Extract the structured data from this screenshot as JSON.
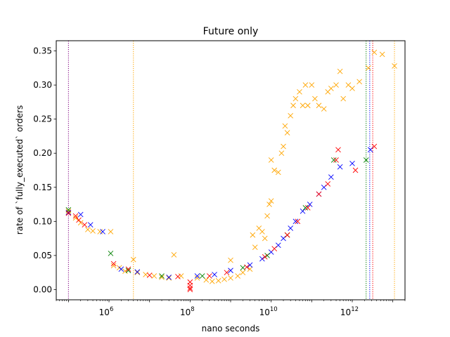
{
  "chart_data": {
    "type": "scatter",
    "title": "Future only",
    "xlabel": "nano seconds",
    "ylabel": "rate of `fully_executed` orders",
    "x_scale": "log",
    "xlim": [
      50000,
      20000000000000
    ],
    "ylim": [
      -0.015,
      0.365
    ],
    "xticks": [
      {
        "value": 1000000,
        "base": "10",
        "exp": "6"
      },
      {
        "value": 100000000,
        "base": "10",
        "exp": "8"
      },
      {
        "value": 10000000000,
        "base": "10",
        "exp": "10"
      },
      {
        "value": 1000000000000,
        "base": "10",
        "exp": "12"
      }
    ],
    "yticks": [
      {
        "value": 0.0,
        "label": "0.00"
      },
      {
        "value": 0.05,
        "label": "0.05"
      },
      {
        "value": 0.1,
        "label": "0.10"
      },
      {
        "value": 0.15,
        "label": "0.15"
      },
      {
        "value": 0.2,
        "label": "0.20"
      },
      {
        "value": 0.25,
        "label": "0.25"
      },
      {
        "value": 0.3,
        "label": "0.30"
      },
      {
        "value": 0.35,
        "label": "0.35"
      }
    ],
    "grid": false,
    "marker": "x",
    "series": [
      {
        "color": "#ffa500",
        "points": [
          [
            100000,
            0.115
          ],
          [
            150000,
            0.105
          ],
          [
            200000,
            0.098
          ],
          [
            300000,
            0.088
          ],
          [
            400000,
            0.086
          ],
          [
            600000,
            0.085
          ],
          [
            1100000,
            0.085
          ],
          [
            1300000,
            0.035
          ],
          [
            1800000,
            0.032
          ],
          [
            2500000,
            0.027
          ],
          [
            4000000,
            0.044
          ],
          [
            5000000,
            0.025
          ],
          [
            8000000,
            0.022
          ],
          [
            13000000,
            0.02
          ],
          [
            20000000,
            0.018
          ],
          [
            30000000,
            0.017
          ],
          [
            40000000,
            0.051
          ],
          [
            60000000,
            0.02
          ],
          [
            1000000000,
            0.043
          ],
          [
            150000000,
            0.017
          ],
          [
            250000000,
            0.014
          ],
          [
            350000000,
            0.012
          ],
          [
            500000000,
            0.013
          ],
          [
            700000000,
            0.015
          ],
          [
            1000000000,
            0.017
          ],
          [
            1500000000,
            0.02
          ],
          [
            2000000000,
            0.025
          ],
          [
            3000000000,
            0.03
          ],
          [
            3500000000,
            0.08
          ],
          [
            4000000000,
            0.062
          ],
          [
            5000000000,
            0.09
          ],
          [
            6000000000,
            0.085
          ],
          [
            7000000000,
            0.075
          ],
          [
            8000000000,
            0.108
          ],
          [
            9000000000,
            0.125
          ],
          [
            10000000000,
            0.13
          ],
          [
            10000000000,
            0.19
          ],
          [
            12000000000,
            0.175
          ],
          [
            15000000000,
            0.172
          ],
          [
            18000000000,
            0.2
          ],
          [
            20000000000,
            0.21
          ],
          [
            22000000000,
            0.24
          ],
          [
            25000000000,
            0.23
          ],
          [
            30000000000,
            0.255
          ],
          [
            35000000000,
            0.27
          ],
          [
            40000000000,
            0.28
          ],
          [
            50000000000,
            0.29
          ],
          [
            60000000000,
            0.27
          ],
          [
            70000000000,
            0.3
          ],
          [
            80000000000,
            0.27
          ],
          [
            100000000000,
            0.3
          ],
          [
            120000000000,
            0.28
          ],
          [
            150000000000,
            0.27
          ],
          [
            200000000000,
            0.265
          ],
          [
            250000000000,
            0.29
          ],
          [
            300000000000,
            0.295
          ],
          [
            400000000000,
            0.3
          ],
          [
            500000000000,
            0.32
          ],
          [
            600000000000,
            0.28
          ],
          [
            800000000000,
            0.3
          ],
          [
            1000000000000,
            0.295
          ],
          [
            1500000000000,
            0.305
          ],
          [
            2500000000000,
            0.325
          ],
          [
            3500000000000,
            0.348
          ],
          [
            5500000000000,
            0.345
          ],
          [
            11000000000000,
            0.328
          ]
        ]
      },
      {
        "color": "#0000ff",
        "points": [
          [
            100000,
            0.113
          ],
          [
            200000,
            0.11
          ],
          [
            350000,
            0.095
          ],
          [
            700000,
            0.085
          ],
          [
            2000000,
            0.03
          ],
          [
            5000000,
            0.026
          ],
          [
            30000000,
            0.018
          ],
          [
            150000000,
            0.02
          ],
          [
            400000000,
            0.022
          ],
          [
            1000000000,
            0.028
          ],
          [
            3000000000,
            0.036
          ],
          [
            6000000000,
            0.045
          ],
          [
            10000000000,
            0.055
          ],
          [
            15000000000,
            0.065
          ],
          [
            20000000000,
            0.075
          ],
          [
            30000000000,
            0.09
          ],
          [
            40000000000,
            0.1
          ],
          [
            60000000000,
            0.115
          ],
          [
            90000000000,
            0.125
          ],
          [
            150000000000,
            0.14
          ],
          [
            200000000000,
            0.15
          ],
          [
            300000000000,
            0.165
          ],
          [
            500000000000,
            0.18
          ],
          [
            1000000000000,
            0.185
          ],
          [
            2800000000000,
            0.205
          ]
        ]
      },
      {
        "color": "#008000",
        "points": [
          [
            100000,
            0.117
          ],
          [
            1100000,
            0.053
          ],
          [
            3000000,
            0.028
          ],
          [
            20000000,
            0.02
          ],
          [
            200000000,
            0.02
          ],
          [
            2000000000,
            0.032
          ],
          [
            8000000000,
            0.05
          ],
          [
            25000000000,
            0.08
          ],
          [
            70000000000,
            0.12
          ],
          [
            350000000000,
            0.19
          ],
          [
            2200000000000,
            0.19
          ]
        ]
      },
      {
        "color": "#ff0000",
        "points": [
          [
            100000,
            0.112
          ],
          [
            150000,
            0.108
          ],
          [
            180000,
            0.102
          ],
          [
            250000,
            0.095
          ],
          [
            1300000,
            0.038
          ],
          [
            3000000,
            0.03
          ],
          [
            10000000,
            0.021
          ],
          [
            50000000,
            0.019
          ],
          [
            100000000,
            0.011
          ],
          [
            100000000,
            0.006
          ],
          [
            100000000,
            0.002
          ],
          [
            100000000,
            0.0
          ],
          [
            300000000,
            0.02
          ],
          [
            800000000,
            0.025
          ],
          [
            2500000000,
            0.033
          ],
          [
            7000000000,
            0.048
          ],
          [
            12000000000,
            0.06
          ],
          [
            25000000000,
            0.08
          ],
          [
            45000000000,
            0.1
          ],
          [
            80000000000,
            0.12
          ],
          [
            150000000000,
            0.14
          ],
          [
            250000000000,
            0.155
          ],
          [
            400000000000,
            0.19
          ],
          [
            450000000000,
            0.205
          ],
          [
            1200000000000,
            0.175
          ],
          [
            3500000000000,
            0.21
          ]
        ]
      }
    ],
    "vlines": [
      {
        "x": 100000,
        "color": "#800080"
      },
      {
        "x": 4000000,
        "color": "#ffa500"
      },
      {
        "x": 2200000000000,
        "color": "#008000"
      },
      {
        "x": 2700000000000,
        "color": "#0000ff"
      },
      {
        "x": 3200000000000,
        "color": "#ff0000"
      },
      {
        "x": 11000000000000,
        "color": "#ffa500"
      }
    ]
  }
}
